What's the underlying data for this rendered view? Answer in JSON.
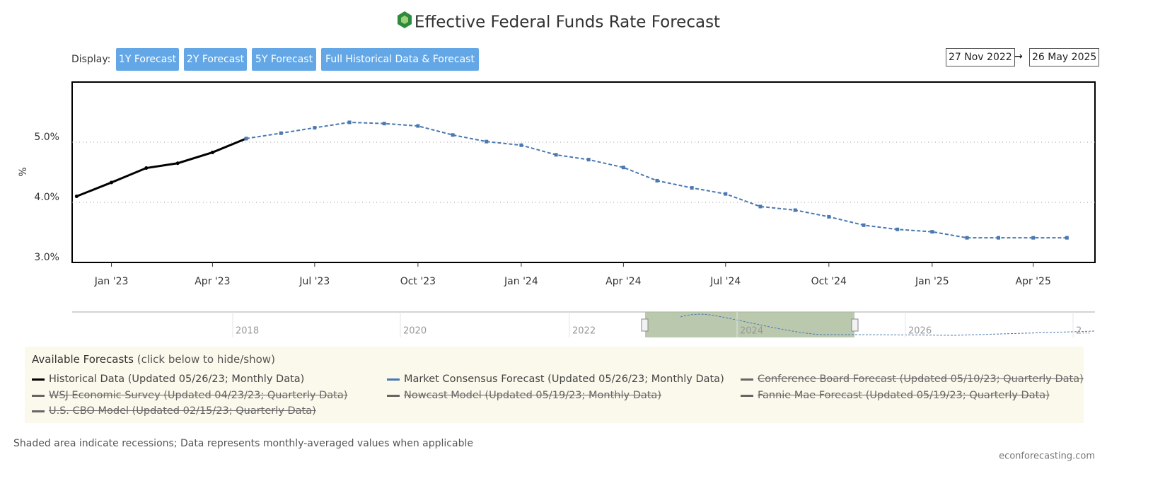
{
  "title": "Effective Federal Funds Rate Forecast",
  "display_label": "Display:",
  "buttons": [
    "1Y Forecast",
    "2Y Forecast",
    "5Y Forecast",
    "Full Historical Data & Forecast"
  ],
  "range": {
    "from": "27 Nov 2022",
    "separator": "→",
    "to": "26 May 2025"
  },
  "chart_data": {
    "type": "line",
    "ylabel": "%",
    "x": [
      "2022-12",
      "2023-01",
      "2023-02",
      "2023-03",
      "2023-04",
      "2023-05",
      "2023-06",
      "2023-07",
      "2023-08",
      "2023-09",
      "2023-10",
      "2023-11",
      "2023-12",
      "2024-01",
      "2024-02",
      "2024-03",
      "2024-04",
      "2024-05",
      "2024-06",
      "2024-07",
      "2024-08",
      "2024-09",
      "2024-10",
      "2024-11",
      "2024-12",
      "2025-01",
      "2025-02",
      "2025-03",
      "2025-04",
      "2025-05"
    ],
    "series": [
      {
        "name": "Historical Data (Updated 05/26/23; Monthly Data)",
        "color": "#000000",
        "dashed": false,
        "values": [
          4.1,
          4.33,
          4.57,
          4.65,
          4.83,
          5.06,
          null,
          null,
          null,
          null,
          null,
          null,
          null,
          null,
          null,
          null,
          null,
          null,
          null,
          null,
          null,
          null,
          null,
          null,
          null,
          null,
          null,
          null,
          null,
          null
        ]
      },
      {
        "name": "Market Consensus Forecast (Updated 05/26/23; Monthly Data)",
        "color": "#4a78b0",
        "dashed": true,
        "values": [
          null,
          null,
          null,
          null,
          null,
          5.06,
          5.15,
          5.24,
          5.33,
          5.31,
          5.27,
          5.12,
          5.01,
          4.95,
          4.79,
          4.71,
          4.58,
          4.36,
          4.24,
          4.14,
          3.93,
          3.87,
          3.76,
          3.62,
          3.55,
          3.51,
          3.41,
          3.41,
          3.41,
          3.41
        ]
      }
    ],
    "xlim": [
      "2022-11-27",
      "2025-05-26"
    ],
    "xticks": [
      {
        "value": "2023-01",
        "label": "Jan '23"
      },
      {
        "value": "2023-04",
        "label": "Apr '23"
      },
      {
        "value": "2023-07",
        "label": "Jul '23"
      },
      {
        "value": "2023-10",
        "label": "Oct '23"
      },
      {
        "value": "2024-01",
        "label": "Jan '24"
      },
      {
        "value": "2024-04",
        "label": "Apr '24"
      },
      {
        "value": "2024-07",
        "label": "Jul '24"
      },
      {
        "value": "2024-10",
        "label": "Oct '24"
      },
      {
        "value": "2025-01",
        "label": "Jan '25"
      },
      {
        "value": "2025-04",
        "label": "Apr '25"
      }
    ],
    "ylim": [
      3,
      6
    ],
    "yticks": [
      {
        "value": 3,
        "label": "3.0%"
      },
      {
        "value": 4,
        "label": "4.0%"
      },
      {
        "value": 5,
        "label": "5.0%"
      }
    ],
    "grid": true
  },
  "navigator": {
    "labels": [
      "2018",
      "2020",
      "2022",
      "2024",
      "2026",
      "2..."
    ]
  },
  "legend": {
    "heading": "Available Forecasts",
    "hint": "(click below to hide/show)",
    "hidden": [
      "Conference Board Forecast (Updated 05/10/23; Quarterly Data)",
      "WSJ Economic Survey (Updated 04/23/23; Quarterly Data)",
      "Nowcast Model (Updated 05/19/23; Monthly Data)",
      "Fannie Mae Forecast (Updated 05/19/23; Quarterly Data)",
      "U.S. CBO Model (Updated 02/15/23; Quarterly Data)"
    ]
  },
  "footnote": "Shaded area indicate recessions; Data represents monthly-averaged values when applicable",
  "credit": "econforecasting.com"
}
